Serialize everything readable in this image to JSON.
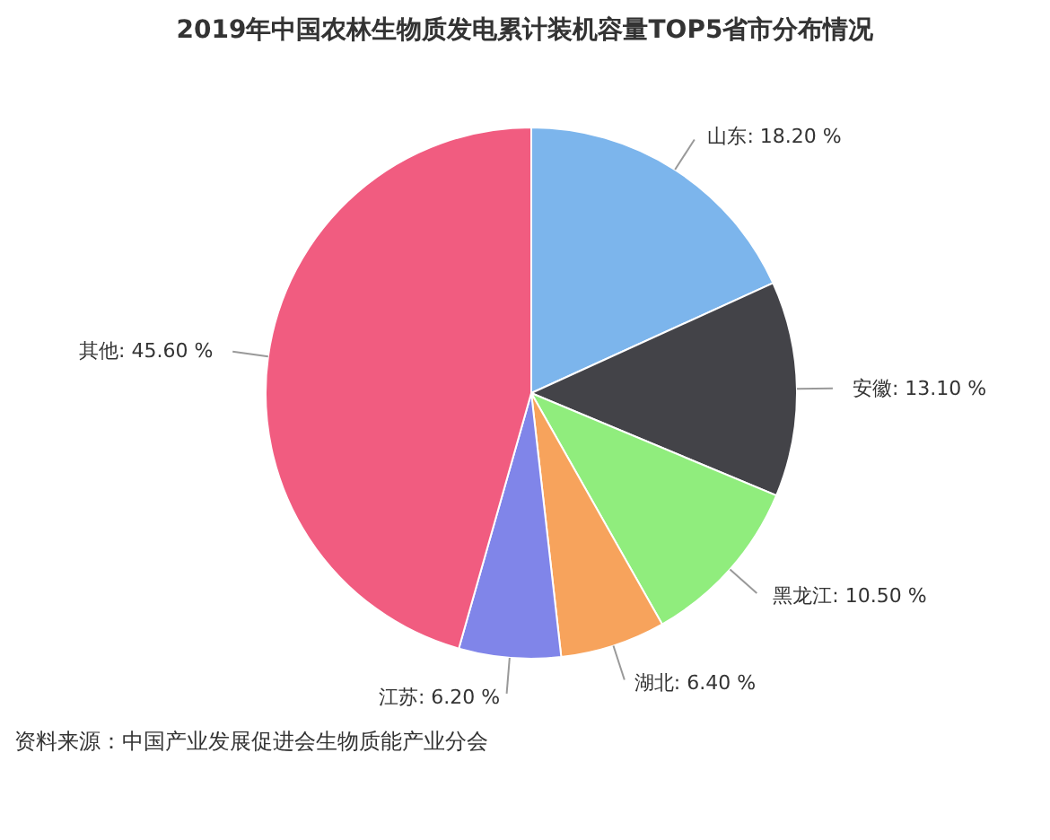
{
  "chart_data": {
    "type": "pie",
    "title": "2019年中国农林生物质发电累计装机容量TOP5省市分布情况",
    "categories": [
      "山东",
      "安徽",
      "黑龙江",
      "湖北",
      "江苏",
      "其他"
    ],
    "values": [
      18.2,
      13.1,
      10.5,
      6.4,
      6.2,
      45.6
    ],
    "value_labels": [
      "18.20 %",
      "13.10 %",
      "10.50 %",
      "6.40 %",
      "6.20 %",
      "45.60 %"
    ],
    "colors": [
      "#7cb5ec",
      "#434348",
      "#90ed7d",
      "#f7a35c",
      "#8085e9",
      "#f15c80"
    ],
    "annotations": [
      "资料来源：中国产业发展促进会生物质能产业分会"
    ]
  }
}
